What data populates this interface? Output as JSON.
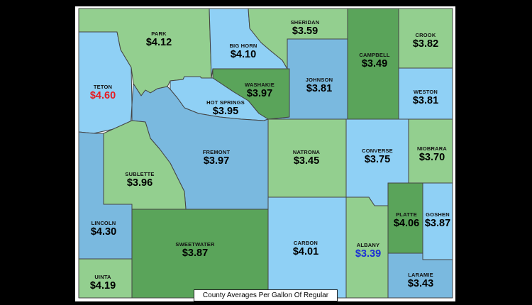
{
  "colors": {
    "light_green": "#93cf8f",
    "dark_green": "#5aa45a",
    "light_blue": "#8fd0f5",
    "mid_blue": "#7ab9df",
    "border": "#444444",
    "high_price": "#e51c23",
    "low_price": "#1a2fd6"
  },
  "caption": "County Averages Per Gallon Of Regular",
  "counties": {
    "park": {
      "name": "PARK",
      "price": "$4.12"
    },
    "big_horn": {
      "name": "BIG HORN",
      "price": "$4.10"
    },
    "sheridan": {
      "name": "SHERIDAN",
      "price": "$3.59"
    },
    "crook": {
      "name": "CROOK",
      "price": "$3.82"
    },
    "campbell": {
      "name": "CAMPBELL",
      "price": "$3.49"
    },
    "teton": {
      "name": "TETON",
      "price": "$4.60"
    },
    "washakie": {
      "name": "WASHAKIE",
      "price": "$3.97"
    },
    "johnson": {
      "name": "JOHNSON",
      "price": "$3.81"
    },
    "hot_springs": {
      "name": "HOT SPRINGS",
      "price": "$3.95"
    },
    "weston": {
      "name": "WESTON",
      "price": "$3.81"
    },
    "fremont": {
      "name": "FREMONT",
      "price": "$3.97"
    },
    "natrona": {
      "name": "NATRONA",
      "price": "$3.45"
    },
    "converse": {
      "name": "CONVERSE",
      "price": "$3.75"
    },
    "niobrara": {
      "name": "NIOBRARA",
      "price": "$3.70"
    },
    "sublette": {
      "name": "SUBLETTE",
      "price": "$3.96"
    },
    "platte": {
      "name": "PLATTE",
      "price": "$4.06"
    },
    "goshen": {
      "name": "GOSHEN",
      "price": "$3.87"
    },
    "lincoln": {
      "name": "LINCOLN",
      "price": "$4.30"
    },
    "sweetwater": {
      "name": "SWEETWATER",
      "price": "$3.87"
    },
    "carbon": {
      "name": "CARBON",
      "price": "$4.01"
    },
    "albany": {
      "name": "ALBANY",
      "price": "$3.39"
    },
    "uinta": {
      "name": "UINTA",
      "price": "$4.19"
    },
    "laramie": {
      "name": "LARAMIE",
      "price": "$3.43"
    }
  }
}
